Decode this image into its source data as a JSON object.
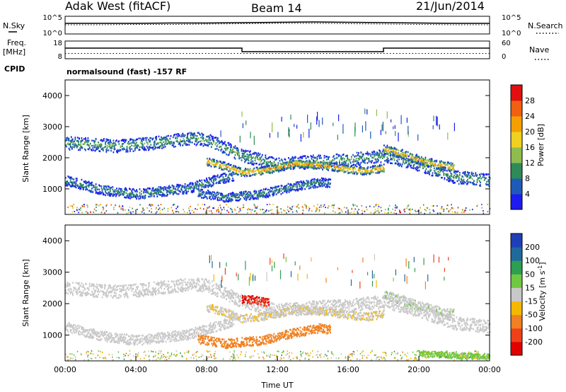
{
  "header": {
    "title_left": "Adak West (fitACF)",
    "title_center": "Beam 14",
    "title_right": "21/Jun/2014"
  },
  "strips": {
    "nsky_label": "N.Sky",
    "nsearch_label": "N.Search",
    "noise_ticks_left": [
      "10^5",
      "10^0"
    ],
    "noise_ticks_right": [
      "10^5",
      "10^0"
    ],
    "freq_label_line1": "Freq.",
    "freq_label_line2": "[MHz]",
    "freq_ticks": [
      "18",
      "8"
    ],
    "nave_label": "Nave",
    "nave_ticks": [
      "60",
      "0"
    ],
    "cpid_label": "CPID",
    "cpid_text": "normalsound (fast) -157 RF"
  },
  "chart_data": [
    {
      "type": "line",
      "panel": "noise",
      "series": [
        {
          "name": "N.Sky",
          "style": "solid",
          "x_hours": [
            0,
            2,
            4,
            6,
            8,
            10,
            12,
            14,
            16,
            18,
            20,
            22,
            24
          ],
          "values_log10": [
            3.0,
            3.0,
            3.0,
            3.1,
            3.1,
            3.2,
            3.3,
            3.4,
            3.3,
            3.2,
            3.1,
            3.0,
            3.0
          ]
        },
        {
          "name": "N.Search",
          "style": "dotted",
          "x_hours": [
            0,
            2,
            4,
            6,
            8,
            10,
            12,
            14,
            16,
            18,
            20,
            22,
            24
          ],
          "values_log10": [
            2.6,
            2.6,
            2.7,
            2.7,
            2.8,
            2.9,
            3.0,
            3.0,
            2.9,
            2.8,
            2.7,
            2.6,
            2.6
          ]
        }
      ],
      "ylim": [
        0,
        5
      ]
    },
    {
      "type": "line",
      "panel": "frequency_nave",
      "series": [
        {
          "name": "Freq.",
          "style": "solid",
          "x_hours": [
            0,
            10,
            10,
            18,
            18,
            24
          ],
          "values": [
            14,
            14,
            12,
            12,
            14,
            14
          ]
        },
        {
          "name": "Nave",
          "style": "dotted",
          "x_hours": [
            0,
            24
          ],
          "values": [
            18,
            18
          ]
        }
      ],
      "freq_ylim": [
        8,
        18
      ],
      "nave_ylim": [
        0,
        60
      ]
    },
    {
      "type": "heatmap",
      "panel": "power",
      "ylabel": "Slant Range [km]",
      "xlim": [
        0,
        24
      ],
      "ylim": [
        180,
        4500
      ],
      "yticks": [
        1000,
        2000,
        3000,
        4000
      ],
      "colorbar": {
        "label": "Power [dB]",
        "levels": [
          4,
          8,
          12,
          16,
          20,
          24,
          28
        ],
        "colors": [
          "#1c1cf0",
          "#1e5ab8",
          "#2e8b57",
          "#8fbc4f",
          "#f0d020",
          "#f5a000",
          "#f06010",
          "#e01010"
        ]
      },
      "echo_bands": [
        {
          "t": [
            0.0,
            1.5,
            3.0,
            5.0,
            7.0,
            8.0,
            10.0,
            12.0,
            14.0,
            16.0,
            18.0,
            20.0,
            22.0,
            24.0
          ],
          "r": [
            2500,
            2450,
            2400,
            2500,
            2650,
            2600,
            2100,
            1800,
            1900,
            1950,
            2100,
            1800,
            1400,
            1300
          ],
          "width": 260,
          "power": 12
        },
        {
          "t": [
            0.0,
            1.0,
            2.0,
            4.0,
            7.0,
            8.5,
            9.5
          ],
          "r": [
            1300,
            1150,
            1000,
            850,
            1050,
            1300,
            1450
          ],
          "width": 200,
          "power": 10
        },
        {
          "t": [
            8.0,
            9.0,
            10.0,
            11.0,
            12.0,
            13.0,
            14.0,
            15.0,
            16.0,
            17.0,
            18.0
          ],
          "r": [
            1900,
            1750,
            1550,
            1600,
            1700,
            1850,
            1800,
            1750,
            1650,
            1600,
            1700
          ],
          "width": 160,
          "power": 24
        },
        {
          "t": [
            7.5,
            9.0,
            11.0,
            13.0,
            14.5,
            15.0
          ],
          "r": [
            900,
            750,
            850,
            1100,
            1250,
            1200
          ],
          "width": 180,
          "power": 10
        },
        {
          "t": [
            18.0,
            19.0,
            20.0,
            21.0,
            22.0
          ],
          "r": [
            2300,
            2150,
            1950,
            1800,
            1700
          ],
          "width": 180,
          "power": 22
        }
      ]
    },
    {
      "type": "heatmap",
      "panel": "velocity",
      "xlabel": "Time UT",
      "ylabel": "Slant Range [km]",
      "xlim": [
        0,
        24
      ],
      "ylim": [
        180,
        4500
      ],
      "xticks": [
        0,
        4,
        8,
        12,
        16,
        20,
        24
      ],
      "xtick_labels": [
        "00:00",
        "04:00",
        "08:00",
        "12:00",
        "16:00",
        "20:00",
        "00:00"
      ],
      "yticks": [
        1000,
        2000,
        3000,
        4000
      ],
      "colorbar": {
        "label": "Velocity [m s^-1]",
        "levels": [
          200,
          100,
          50,
          15,
          -15,
          -50,
          -100,
          -200
        ],
        "colors": [
          "#1f3fb8",
          "#1f6a9a",
          "#2e9e50",
          "#70c840",
          "#c8c8c8",
          "#f5b800",
          "#f08020",
          "#f04018",
          "#e00000"
        ]
      },
      "echo_bands": [
        {
          "t": [
            0.0,
            1.5,
            3.0,
            5.0,
            7.0,
            8.0,
            10.0,
            12.0,
            14.0,
            16.0,
            18.0,
            20.0,
            22.0,
            24.0
          ],
          "r": [
            2500,
            2450,
            2400,
            2500,
            2650,
            2600,
            2100,
            1800,
            1900,
            1950,
            2100,
            1800,
            1400,
            1300
          ],
          "width": 260,
          "velocity": -5
        },
        {
          "t": [
            0.0,
            1.0,
            2.0,
            4.0,
            7.0,
            8.5,
            9.5
          ],
          "r": [
            1300,
            1150,
            1000,
            850,
            1050,
            1300,
            1450
          ],
          "width": 200,
          "velocity": 0
        },
        {
          "t": [
            8.0,
            9.0,
            10.0,
            11.0,
            12.0,
            13.0,
            14.0,
            15.0,
            16.0,
            17.0,
            18.0
          ],
          "r": [
            1900,
            1750,
            1550,
            1600,
            1700,
            1850,
            1800,
            1750,
            1650,
            1600,
            1700
          ],
          "width": 160,
          "velocity": -10
        },
        {
          "t": [
            7.5,
            9.0,
            11.0,
            13.0,
            14.5,
            15.0
          ],
          "r": [
            900,
            750,
            850,
            1100,
            1250,
            1200
          ],
          "width": 180,
          "velocity": -60
        },
        {
          "t": [
            18.0,
            19.0,
            20.0,
            21.0,
            22.0
          ],
          "r": [
            2300,
            2150,
            1950,
            1800,
            1700
          ],
          "width": 180,
          "velocity": 8
        },
        {
          "t": [
            10.0,
            10.5,
            11.0,
            11.5
          ],
          "r": [
            2150,
            2150,
            2100,
            2050
          ],
          "width": 160,
          "velocity": -200
        },
        {
          "t": [
            20.0,
            21.0,
            22.0,
            23.0,
            24.0
          ],
          "r": [
            450,
            400,
            380,
            360,
            350
          ],
          "width": 120,
          "velocity": 40
        }
      ]
    }
  ]
}
